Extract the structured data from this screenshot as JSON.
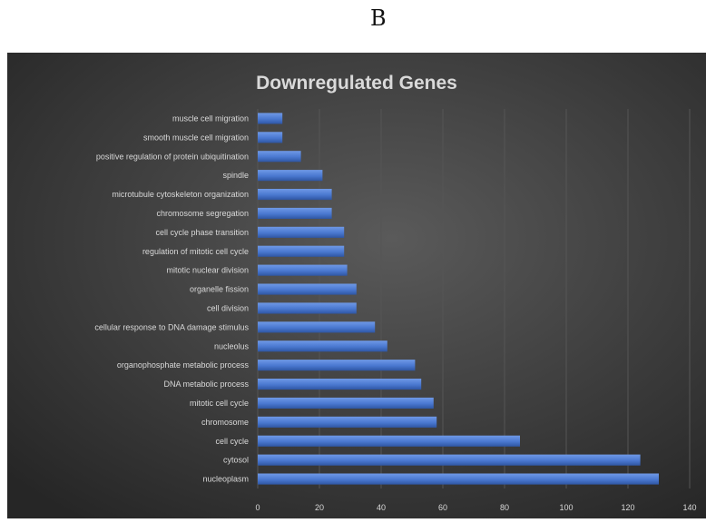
{
  "panel_label": "B",
  "chart_data": {
    "type": "bar",
    "orientation": "horizontal",
    "title": "Downregulated Genes",
    "xlabel": "",
    "ylabel": "",
    "xlim": [
      0,
      140
    ],
    "xticks": [
      0,
      20,
      40,
      60,
      80,
      100,
      120,
      140
    ],
    "grid": true,
    "legend": "none",
    "colors": {
      "background": "#3a3a3a",
      "bar": "#4a78d0",
      "text": "#d9d9d9",
      "grid": "#555555"
    },
    "categories": [
      "muscle cell migration",
      "smooth muscle cell migration",
      "positive regulation of protein ubiquitination",
      "spindle",
      "microtubule cytoskeleton organization",
      "chromosome segregation",
      "cell cycle phase transition",
      "regulation of mitotic cell cycle",
      "mitotic nuclear division",
      "organelle fission",
      "cell division",
      "cellular response to DNA damage stimulus",
      "nucleolus",
      "organophosphate metabolic process",
      "DNA metabolic process",
      "mitotic cell cycle",
      "chromosome",
      "cell cycle",
      "cytosol",
      "nucleoplasm"
    ],
    "values": [
      8,
      8,
      14,
      21,
      24,
      24,
      28,
      28,
      29,
      32,
      32,
      38,
      42,
      51,
      53,
      57,
      58,
      85,
      124,
      130
    ]
  }
}
